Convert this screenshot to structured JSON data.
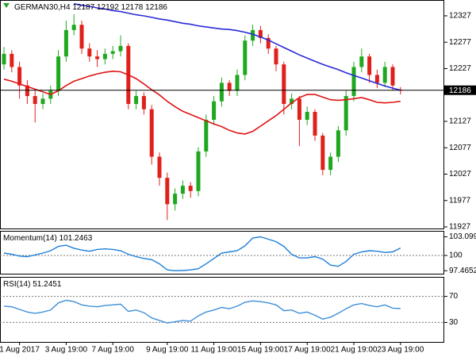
{
  "chart_data": [
    {
      "type": "candlestick",
      "title": "GERMAN30,H4",
      "categories": [
        null,
        null,
        "1 Aug 2017",
        null,
        null,
        null,
        null,
        null,
        "3 Aug 19:00",
        null,
        null,
        null,
        null,
        null,
        "7 Aug 19:00",
        null,
        null,
        null,
        null,
        null,
        null,
        "9 Aug 19:00",
        null,
        null,
        null,
        null,
        null,
        "11 Aug 19:00",
        null,
        null,
        null,
        null,
        null,
        "15 Aug 19:00",
        null,
        null,
        null,
        null,
        null,
        "17 Aug 19:00",
        null,
        null,
        null,
        null,
        null,
        "21 Aug 19:00",
        null,
        null,
        null,
        null,
        null,
        "23 Aug 19:00"
      ],
      "open": [
        12235,
        12255,
        12230,
        12195,
        12175,
        12160,
        12170,
        12185,
        12250,
        12300,
        12310,
        12265,
        12250,
        12245,
        12255,
        12260,
        12270,
        12160,
        12175,
        12150,
        12060,
        12020,
        11970,
        11990,
        12005,
        11995,
        12070,
        12130,
        12165,
        12200,
        12185,
        12215,
        12280,
        12300,
        12285,
        12265,
        12235,
        12160,
        12170,
        12130,
        12145,
        12100,
        12035,
        12060,
        12110,
        12175,
        12230,
        12250,
        12215,
        12200,
        12230,
        12187
      ],
      "high": [
        12268,
        12262,
        12240,
        12205,
        12185,
        12180,
        12195,
        12262,
        12318,
        12330,
        12318,
        12275,
        12262,
        12265,
        12270,
        12290,
        12275,
        12185,
        12182,
        12158,
        12068,
        12030,
        12000,
        12015,
        12012,
        12078,
        12140,
        12175,
        12210,
        12205,
        12225,
        12290,
        12310,
        12308,
        12292,
        12270,
        12240,
        12180,
        12175,
        12155,
        12150,
        12105,
        12068,
        12118,
        12185,
        12240,
        12265,
        12255,
        12225,
        12240,
        12235,
        12192
      ],
      "low": [
        12225,
        12220,
        12170,
        12160,
        12125,
        12150,
        12160,
        12175,
        12240,
        12290,
        12255,
        12240,
        12230,
        12235,
        12245,
        12250,
        12150,
        12150,
        12140,
        12045,
        12005,
        11940,
        11958,
        11980,
        11982,
        11985,
        12060,
        12120,
        12155,
        12175,
        12175,
        12205,
        12270,
        12275,
        12255,
        12222,
        12140,
        12150,
        12080,
        12120,
        12090,
        12025,
        12025,
        12050,
        12100,
        12165,
        12220,
        12200,
        12190,
        12192,
        12185,
        12178
      ],
      "close": [
        12255,
        12230,
        12195,
        12175,
        12160,
        12170,
        12185,
        12250,
        12300,
        12310,
        12265,
        12250,
        12245,
        12255,
        12260,
        12270,
        12160,
        12175,
        12150,
        12060,
        12020,
        11970,
        11990,
        12005,
        11995,
        12070,
        12130,
        12165,
        12200,
        12185,
        12215,
        12280,
        12300,
        12285,
        12265,
        12235,
        12160,
        12170,
        12130,
        12145,
        12100,
        12035,
        12060,
        12110,
        12175,
        12230,
        12250,
        12215,
        12200,
        12230,
        12195,
        12186
      ],
      "up_color": "#1fa81f",
      "down_color": "#e0201b",
      "series": [
        {
          "color": "#2a2ad8",
          "values": [
            null,
            null,
            null,
            null,
            null,
            null,
            null,
            null,
            null,
            12350,
            12347,
            12345,
            12342,
            12340,
            12337,
            12335,
            12332,
            12329,
            12327,
            12324,
            12321,
            12319,
            12316,
            12313,
            12311,
            12308,
            12306,
            12304,
            12302,
            12301,
            12299,
            12296,
            12292,
            12287,
            12281,
            12274,
            12267,
            12260,
            12253,
            12247,
            12241,
            12235,
            12230,
            12225,
            12219,
            12214,
            12209,
            12204,
            12199,
            12194,
            12190,
            12186
          ]
        },
        {
          "color": "#e01414",
          "values": [
            12207,
            12203,
            12198,
            12193,
            12188,
            12183,
            12178,
            12185,
            12195,
            12203,
            12208,
            12213,
            12217,
            12220,
            12222,
            12221,
            12215,
            12208,
            12198,
            12187,
            12177,
            12165,
            12155,
            12146,
            12140,
            12134,
            12128,
            12122,
            12117,
            12110,
            12105,
            12103,
            12108,
            12118,
            12128,
            12138,
            12150,
            12162,
            12172,
            12178,
            12178,
            12173,
            12168,
            12167,
            12168,
            12170,
            12172,
            12168,
            12163,
            12162,
            12163,
            12165
          ]
        }
      ],
      "ylim": [
        11924,
        12357
      ],
      "yticks": [
        12327,
        12277,
        12227,
        12127,
        12077,
        12027,
        11977,
        11927
      ]
    },
    {
      "type": "line",
      "title": "Momentum(14)",
      "color": "#1e7fd8",
      "values": [
        100.4,
        100.2,
        99.9,
        99.8,
        100.1,
        100.4,
        100.8,
        101.5,
        101.7,
        101.2,
        100.9,
        100.7,
        101.0,
        101.1,
        101.0,
        100.8,
        100.2,
        99.8,
        99.5,
        99.3,
        98.6,
        97.6,
        97.4652,
        97.5,
        97.6,
        97.8,
        98.6,
        99.5,
        100.4,
        100.6,
        100.8,
        101.6,
        102.9,
        103.0996,
        102.7,
        102.3,
        101.5,
        100.2,
        99.6,
        99.6,
        99.8,
        99.4,
        98.4,
        98.2,
        99.0,
        100.2,
        100.6,
        100.8,
        100.7,
        100.5,
        100.6,
        101.2463
      ],
      "ylim": [
        96.97,
        104.09
      ],
      "yticks": [
        103.0996,
        100,
        97.4652
      ],
      "levels": [
        100
      ]
    },
    {
      "type": "line",
      "title": "RSI(14)",
      "color": "#3f8fd8",
      "values": [
        55,
        54,
        50,
        46,
        44,
        46,
        49,
        60,
        64,
        62,
        57,
        55,
        54,
        56,
        57,
        58,
        47,
        49,
        45,
        37,
        33,
        29,
        31,
        33,
        32,
        40,
        46,
        49,
        53,
        51,
        55,
        61,
        63,
        62,
        60,
        57,
        48,
        49,
        44,
        46,
        41,
        35,
        38,
        44,
        51,
        57,
        59,
        56,
        54,
        57,
        52,
        51.2451
      ],
      "ylim": [
        0,
        100
      ],
      "yticks": [
        70,
        30
      ],
      "levels": [
        70,
        30
      ]
    }
  ]
}
